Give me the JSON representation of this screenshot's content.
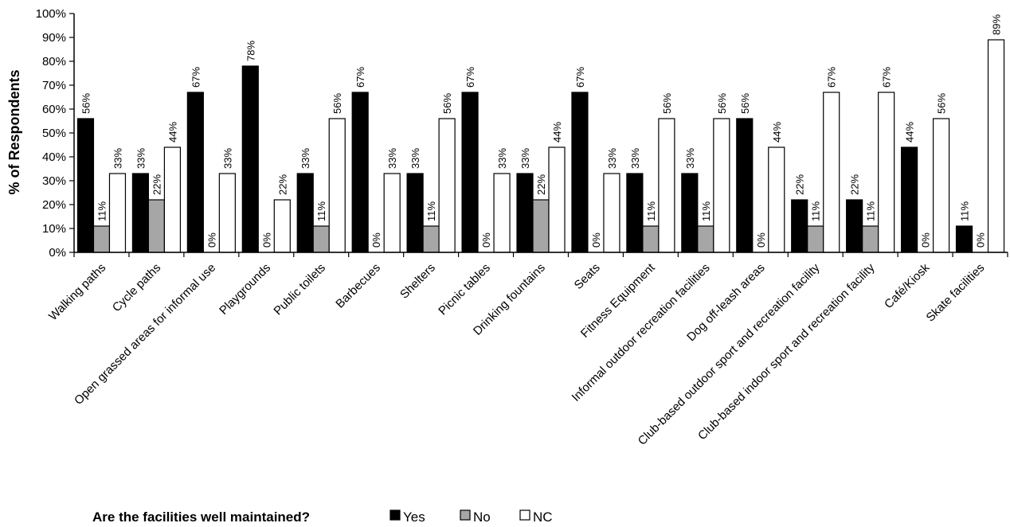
{
  "chart_data": {
    "type": "bar",
    "ylabel": "% of Respondents",
    "ylim": [
      0,
      100
    ],
    "y_tick_step": 10,
    "y_tick_format": "percent",
    "grid": false,
    "legend_title": "Are the facilities well maintained?",
    "legend_position": "bottom",
    "categories": [
      "Walking paths",
      "Cycle paths",
      "Open grassed areas for informal use",
      "Playgrounds",
      "Public toilets",
      "Barbecues",
      "Shelters",
      "Picnic tables",
      "Drinking fountains",
      "Seats",
      "Fitness Equipment",
      "Informal outdoor recreation facilities",
      "Dog off-leash areas",
      "Club-based outdoor sport and recreation facility",
      "Club-based indoor sport and recreation facility",
      "Café/Kiosk",
      "Skate facilities"
    ],
    "series": [
      {
        "name": "Yes",
        "color": "#000000",
        "values": [
          56,
          33,
          67,
          78,
          33,
          67,
          33,
          67,
          33,
          67,
          33,
          33,
          56,
          22,
          22,
          44,
          11
        ]
      },
      {
        "name": "No",
        "color": "#a6a6a6",
        "values": [
          11,
          22,
          0,
          0,
          11,
          0,
          11,
          0,
          22,
          0,
          11,
          11,
          0,
          11,
          11,
          0,
          0
        ]
      },
      {
        "name": "NC",
        "color": "#ffffff",
        "values": [
          33,
          44,
          33,
          22,
          56,
          33,
          56,
          33,
          44,
          33,
          56,
          56,
          44,
          67,
          67,
          56,
          89
        ]
      }
    ]
  }
}
